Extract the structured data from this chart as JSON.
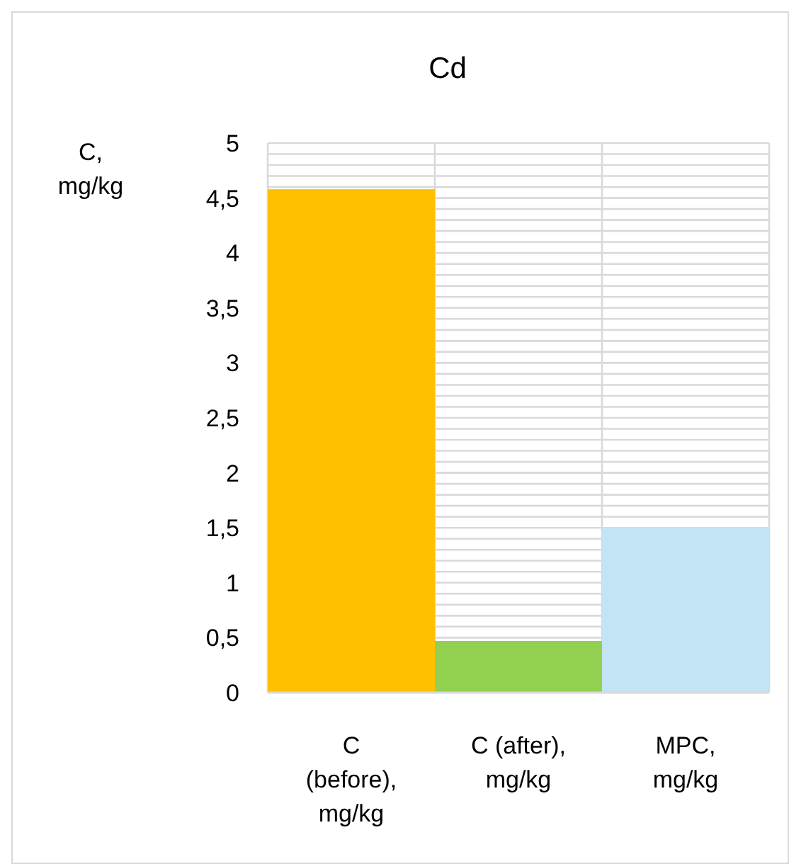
{
  "chart_data": {
    "type": "bar",
    "title": "Cd",
    "ylabel": "C,\nmg/kg",
    "categories": [
      "C\n(before),\nmg/kg",
      "C (after),\nmg/kg",
      "MPC,\nmg/kg"
    ],
    "values": [
      4.58,
      0.47,
      1.5
    ],
    "colors": [
      "#ffc000",
      "#92d050",
      "#c2e4f4"
    ],
    "ylim": [
      0,
      5
    ],
    "yticks": [
      0,
      {
        "value": 0.5,
        "label": "0,5"
      },
      {
        "value": 0.6,
        "label": null
      },
      {
        "value": 0.7,
        "label": null
      },
      {
        "value": 0.8,
        "label": null
      },
      {
        "value": 0.9,
        "label": null
      },
      1,
      {
        "value": 1.1,
        "label": null
      },
      {
        "value": 1.2,
        "label": null
      },
      {
        "value": 1.3,
        "label": null
      },
      {
        "value": 1.4,
        "label": null
      },
      {
        "value": 1.5,
        "label": "1,5"
      },
      {
        "value": 1.6,
        "label": null
      },
      {
        "value": 1.7,
        "label": null
      },
      {
        "value": 1.8,
        "label": null
      },
      {
        "value": 1.9,
        "label": null
      },
      2,
      {
        "value": 2.1,
        "label": null
      },
      {
        "value": 2.2,
        "label": null
      },
      {
        "value": 2.3,
        "label": null
      },
      {
        "value": 2.4,
        "label": null
      },
      {
        "value": 2.5,
        "label": "2,5"
      },
      {
        "value": 2.6,
        "label": null
      },
      {
        "value": 2.7,
        "label": null
      },
      {
        "value": 2.8,
        "label": null
      },
      {
        "value": 2.9,
        "label": null
      },
      3,
      {
        "value": 3.1,
        "label": null
      },
      {
        "value": 3.2,
        "label": null
      },
      {
        "value": 3.3,
        "label": null
      },
      {
        "value": 3.4,
        "label": null
      },
      {
        "value": 3.5,
        "label": "3,5"
      },
      {
        "value": 3.6,
        "label": null
      },
      {
        "value": 3.7,
        "label": null
      },
      {
        "value": 3.8,
        "label": null
      },
      {
        "value": 3.9,
        "label": null
      },
      4,
      {
        "value": 4.1,
        "label": null
      },
      {
        "value": 4.2,
        "label": null
      },
      {
        "value": 4.3,
        "label": null
      },
      {
        "value": 4.4,
        "label": null
      },
      {
        "value": 4.5,
        "label": "4,5"
      },
      {
        "value": 4.6,
        "label": null
      },
      {
        "value": 4.7,
        "label": null
      },
      {
        "value": 4.8,
        "label": null
      },
      {
        "value": 4.9,
        "label": null
      },
      5
    ],
    "grid": true
  }
}
